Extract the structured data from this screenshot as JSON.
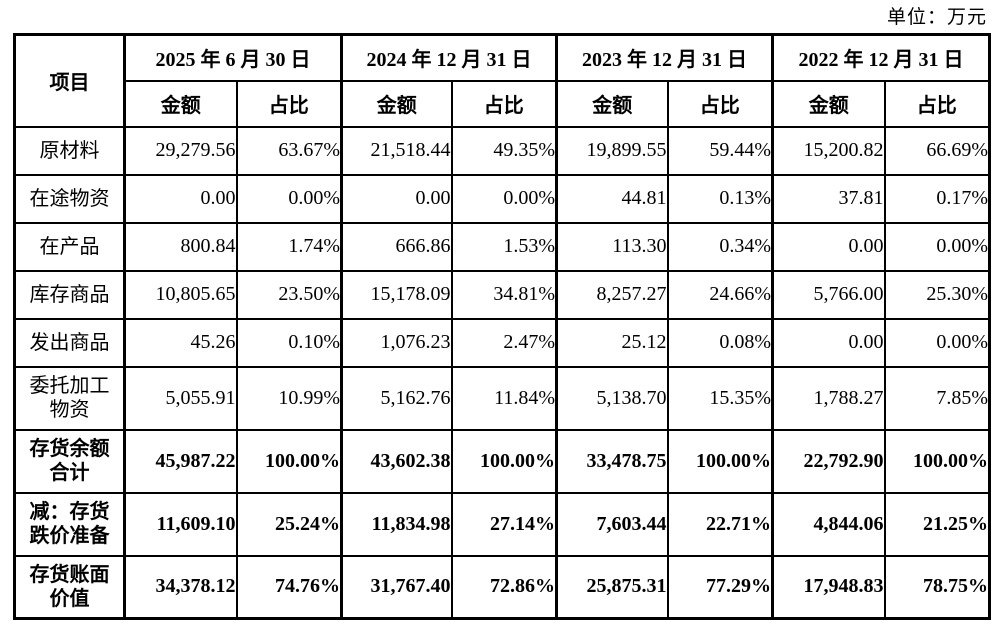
{
  "unit_label": "单位：万元",
  "table": {
    "item_header": "项目",
    "periods": [
      {
        "date": "2025 年 6 月 30 日",
        "amount_label": "金额",
        "ratio_label": "占比"
      },
      {
        "date": "2024 年 12 月 31 日",
        "amount_label": "金额",
        "ratio_label": "占比"
      },
      {
        "date": "2023 年 12 月 31 日",
        "amount_label": "金额",
        "ratio_label": "占比"
      },
      {
        "date": "2022 年 12 月 31 日",
        "amount_label": "金额",
        "ratio_label": "占比"
      }
    ],
    "rows": [
      {
        "label": "原材料",
        "bold": false,
        "values": [
          "29,279.56",
          "63.67%",
          "21,518.44",
          "49.35%",
          "19,899.55",
          "59.44%",
          "15,200.82",
          "66.69%"
        ]
      },
      {
        "label": "在途物资",
        "bold": false,
        "values": [
          "0.00",
          "0.00%",
          "0.00",
          "0.00%",
          "44.81",
          "0.13%",
          "37.81",
          "0.17%"
        ]
      },
      {
        "label": "在产品",
        "bold": false,
        "values": [
          "800.84",
          "1.74%",
          "666.86",
          "1.53%",
          "113.30",
          "0.34%",
          "0.00",
          "0.00%"
        ]
      },
      {
        "label": "库存商品",
        "bold": false,
        "values": [
          "10,805.65",
          "23.50%",
          "15,178.09",
          "34.81%",
          "8,257.27",
          "24.66%",
          "5,766.00",
          "25.30%"
        ]
      },
      {
        "label": "发出商品",
        "bold": false,
        "values": [
          "45.26",
          "0.10%",
          "1,076.23",
          "2.47%",
          "25.12",
          "0.08%",
          "0.00",
          "0.00%"
        ]
      },
      {
        "label": "委托加工\n物资",
        "bold": false,
        "values": [
          "5,055.91",
          "10.99%",
          "5,162.76",
          "11.84%",
          "5,138.70",
          "15.35%",
          "1,788.27",
          "7.85%"
        ]
      },
      {
        "label": "存货余额\n合计",
        "bold": true,
        "values": [
          "45,987.22",
          "100.00%",
          "43,602.38",
          "100.00%",
          "33,478.75",
          "100.00%",
          "22,792.90",
          "100.00%"
        ]
      },
      {
        "label": "减：存货\n跌价准备",
        "bold": true,
        "values": [
          "11,609.10",
          "25.24%",
          "11,834.98",
          "27.14%",
          "7,603.44",
          "22.71%",
          "4,844.06",
          "21.25%"
        ]
      },
      {
        "label": "存货账面\n价值",
        "bold": true,
        "values": [
          "34,378.12",
          "74.76%",
          "31,767.40",
          "72.86%",
          "25,875.31",
          "77.29%",
          "17,948.83",
          "78.75%"
        ]
      }
    ]
  }
}
